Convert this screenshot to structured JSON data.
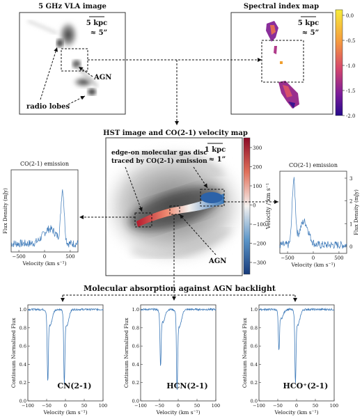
{
  "titles": {
    "vla": "5 GHz VLA image",
    "spectral": "Spectral index map",
    "hst": "HST image and CO(2-1) velocity map",
    "co_left": "CO(2-1) emission",
    "co_right": "CO(2-1) emission",
    "absorption": "Molecular absorption against AGN backlight"
  },
  "annotations": {
    "scale_5kpc": "5 kpc",
    "scale_5arcsec": "≈ 5”",
    "scale_1kpc": "1 kpc",
    "scale_1arcsec": "≈ 1”",
    "agn": "AGN",
    "radio_lobes": "radio lobes",
    "disc_line1": "edge-on molecular gas disc",
    "disc_line2": "traced by CO(2-1) emission"
  },
  "colorbars": {
    "spectral_ticks": [
      "0.0",
      "-0.5",
      "-1.0",
      "-1.5",
      "-2.0"
    ],
    "velocity_ticks": [
      "300",
      "200",
      "100",
      "0",
      "−100",
      "−200",
      "−300"
    ],
    "velocity_label": "Velocity / km s⁻¹"
  },
  "axes": {
    "flux_density": "Flux Density (mJy)",
    "velocity_co": "Velocity (km s⁻¹)",
    "velocity_abs": "Velocity (km s⁻¹)",
    "continuum_norm": "Continuum Normalized Flux"
  },
  "chart_data": [
    {
      "type": "line",
      "title": "CO(2-1) emission",
      "xlabel": "Velocity (km s⁻¹)",
      "ylabel": "Flux Density (mJy)",
      "x_ticks": [
        "−500",
        "0",
        "500"
      ],
      "xlim": [
        -650,
        650
      ],
      "peak_velocity": 350
    },
    {
      "type": "line",
      "title": "CO(2-1) emission",
      "xlabel": "Velocity (km s⁻¹)",
      "ylabel": "Flux Density (mJy)",
      "x_ticks": [
        "−500",
        "0",
        "500"
      ],
      "y_ticks": [
        "0",
        "1",
        "2",
        "3"
      ],
      "xlim": [
        -650,
        650
      ],
      "peak_velocity": -380
    },
    {
      "type": "line",
      "title": "CN(2-1)",
      "xlabel": "Velocity (km s⁻¹)",
      "ylabel": "Continuum Normalized Flux",
      "x_ticks": [
        "−100",
        "−50",
        "0",
        "50",
        "100"
      ],
      "y_ticks": [
        "1.0",
        "0.8",
        "0.6",
        "0.4",
        "0.2",
        "0.0"
      ],
      "xlim": [
        -100,
        100
      ],
      "ylim": [
        0,
        1.05
      ],
      "absorption_lines": [
        {
          "v": -47,
          "depth": 0.7
        },
        {
          "v": -3,
          "depth": 0.72
        }
      ]
    },
    {
      "type": "line",
      "title": "HCN(2-1)",
      "xlabel": "Velocity (km s⁻¹)",
      "ylabel": "Continuum Normalized Flux",
      "x_ticks": [
        "−100",
        "−50",
        "0",
        "50",
        "100"
      ],
      "xlim": [
        -100,
        100
      ],
      "ylim": [
        0,
        1.05
      ],
      "absorption_lines": [
        {
          "v": -47,
          "depth": 0.55
        },
        {
          "v": -3,
          "depth": 0.78
        }
      ]
    },
    {
      "type": "line",
      "title": "HCO⁺(2-1)",
      "xlabel": "Velocity (km s⁻¹)",
      "ylabel": "Continuum Normalized Flux",
      "x_ticks": [
        "−100",
        "−50",
        "0",
        "50",
        "100"
      ],
      "xlim": [
        -100,
        100
      ],
      "ylim": [
        0,
        1.05
      ],
      "absorption_lines": [
        {
          "v": -47,
          "depth": 0.4
        },
        {
          "v": -3,
          "depth": 0.7
        }
      ]
    }
  ]
}
